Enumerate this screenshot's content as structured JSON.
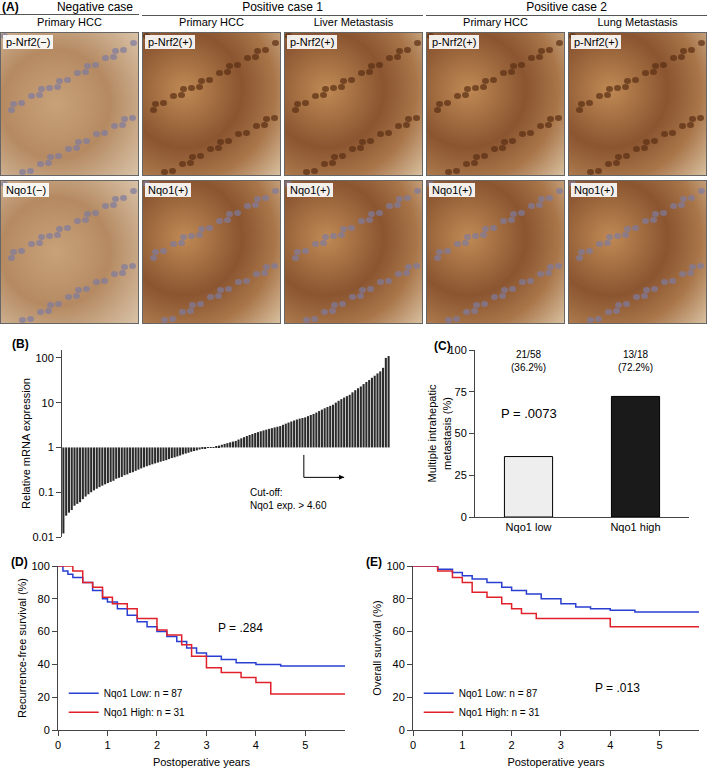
{
  "panel_a": {
    "panel": "(A)",
    "groups": [
      {
        "title": "Negative case",
        "columns": [
          {
            "title": "Primary HCC",
            "stains": [
              "p-Nrf2(−)",
              "Nqo1(−)"
            ]
          }
        ]
      },
      {
        "title": "Positive case 1",
        "columns": [
          {
            "title": "Primary HCC",
            "stains": [
              "p-Nrf2(+)",
              "Nqo1(+)"
            ]
          },
          {
            "title": "Liver Metastasis",
            "stains": [
              "p-Nrf2(+)",
              "Nqo1(+)"
            ]
          }
        ]
      },
      {
        "title": "Positive case 2",
        "columns": [
          {
            "title": "Primary HCC",
            "stains": [
              "p-Nrf2(+)",
              "Nqo1(+)"
            ]
          },
          {
            "title": "Lung Metastasis",
            "stains": [
              "p-Nrf2(+)",
              "Nqo1(+)"
            ]
          }
        ]
      }
    ]
  },
  "chart_data": [
    {
      "panel": "(B)",
      "type": "bar",
      "y_label": "Relative mRNA expression",
      "log": "y",
      "grid": false,
      "tick_labels": "y",
      "baseline": 1,
      "cutoff": 4.6,
      "annotation": "Cut-off:\nNqo1 exp. > 4.60",
      "color": "#2b2b2b",
      "categories": [
        null,
        null,
        null,
        null,
        null,
        null,
        null,
        null,
        null,
        null,
        null,
        null,
        null,
        null,
        null,
        null,
        null,
        null,
        null,
        null,
        null,
        null,
        null,
        null,
        null,
        null,
        null,
        null,
        null,
        null,
        null,
        null,
        null,
        null,
        null,
        null,
        null,
        null,
        null,
        null,
        null,
        null,
        null,
        null,
        null,
        null,
        null,
        null,
        null,
        null,
        null,
        null,
        null,
        null,
        null,
        null,
        null,
        null,
        null,
        null,
        null,
        null,
        null,
        null,
        null,
        null,
        null,
        null,
        null,
        null,
        null,
        null,
        null,
        null,
        null,
        null,
        null,
        null,
        null,
        null,
        null,
        null,
        null,
        null,
        null,
        null,
        null,
        null,
        null,
        null,
        null,
        null,
        null,
        null,
        null,
        null,
        null,
        null,
        null,
        null,
        null,
        null,
        null,
        null,
        null,
        null,
        null,
        null,
        null,
        null,
        null,
        null,
        null,
        null,
        null,
        null,
        null,
        null
      ],
      "values": [
        0.012,
        0.03,
        0.035,
        0.04,
        0.05,
        0.055,
        0.06,
        0.07,
        0.08,
        0.09,
        0.1,
        0.11,
        0.12,
        0.13,
        0.14,
        0.15,
        0.16,
        0.17,
        0.18,
        0.2,
        0.21,
        0.22,
        0.24,
        0.25,
        0.27,
        0.28,
        0.3,
        0.32,
        0.34,
        0.36,
        0.38,
        0.4,
        0.42,
        0.44,
        0.46,
        0.48,
        0.5,
        0.52,
        0.55,
        0.58,
        0.6,
        0.63,
        0.66,
        0.7,
        0.73,
        0.76,
        0.8,
        0.83,
        0.86,
        0.9,
        0.93,
        0.96,
        0.98,
        0.99,
        1.02,
        1.05,
        1.1,
        1.15,
        1.2,
        1.25,
        1.3,
        1.35,
        1.4,
        1.5,
        1.6,
        1.7,
        1.8,
        1.9,
        2.0,
        2.1,
        2.2,
        2.3,
        2.4,
        2.5,
        2.6,
        2.7,
        2.8,
        2.9,
        3.0,
        3.2,
        3.4,
        3.6,
        3.8,
        4.0,
        4.2,
        4.4,
        4.55,
        4.7,
        5.0,
        5.3,
        5.6,
        6.0,
        6.5,
        7.0,
        7.5,
        8.0,
        8.5,
        9.0,
        10,
        11,
        12,
        13,
        14,
        15,
        17,
        19,
        21,
        23,
        26,
        29,
        32,
        36,
        40,
        45,
        50,
        60,
        100,
        110
      ],
      "ylim": [
        0.01,
        150
      ],
      "yticks": [
        0.01,
        0.1,
        1,
        10,
        100
      ]
    },
    {
      "panel": "(C)",
      "type": "bar",
      "y_label": "Multiple intrahepatic\nmetastasis (%)",
      "grid": false,
      "categories": [
        "Nqo1 low",
        "Nqo1 high"
      ],
      "values": [
        36.2,
        72.2
      ],
      "value_labels": [
        "21/58\n(36.2%)",
        "13/18\n(72.2%)"
      ],
      "colors": [
        "#eeeeee",
        "#1a1a1a"
      ],
      "annotation": "P = .0073",
      "ylim": [
        0,
        100
      ],
      "yticks": [
        0,
        25,
        50,
        75,
        100
      ]
    },
    {
      "panel": "(D)",
      "type": "line",
      "line_style": "step",
      "x_label": "Postoperative years",
      "y_label": "Recurrence-free survival (%)",
      "grid": false,
      "legend": "lower left",
      "annotation": "P = .284",
      "xlim": [
        0,
        5.8
      ],
      "xticks": [
        0,
        1,
        2,
        3,
        4,
        5
      ],
      "ylim": [
        0,
        100
      ],
      "yticks": [
        0,
        20,
        40,
        60,
        80,
        100
      ],
      "series": [
        {
          "name": "Nqo1 Low: n = 87",
          "color": "#2a3fd1",
          "x": [
            0,
            0.1,
            0.2,
            0.3,
            0.5,
            0.7,
            0.9,
            1.0,
            1.2,
            1.4,
            1.6,
            1.8,
            2.0,
            2.2,
            2.4,
            2.6,
            2.8,
            3.0,
            3.3,
            3.6,
            4.0,
            4.5,
            5.8
          ],
          "values": [
            100,
            97,
            95,
            93,
            90,
            85,
            80,
            78,
            74,
            70,
            66,
            63,
            60,
            57,
            54,
            50,
            47,
            45,
            43,
            41,
            40,
            39,
            39
          ]
        },
        {
          "name": "Nqo1 High: n = 31",
          "color": "#e0202a",
          "x": [
            0,
            0.3,
            0.5,
            0.7,
            0.9,
            1.1,
            1.4,
            1.6,
            2.0,
            2.2,
            2.5,
            2.7,
            3.0,
            3.3,
            3.7,
            4.0,
            4.3,
            5.8
          ],
          "values": [
            100,
            97,
            90,
            87,
            81,
            77,
            74,
            68,
            61,
            58,
            52,
            45,
            38,
            35,
            32,
            29,
            22,
            22
          ]
        }
      ]
    },
    {
      "panel": "(E)",
      "type": "line",
      "line_style": "step",
      "x_label": "Postoperative years",
      "y_label": "Overall survival (%)",
      "grid": false,
      "legend": "lower left",
      "annotation": "P = .013",
      "xlim": [
        0,
        5.8
      ],
      "xticks": [
        0,
        1,
        2,
        3,
        4,
        5
      ],
      "ylim": [
        0,
        100
      ],
      "yticks": [
        0,
        20,
        40,
        60,
        80,
        100
      ],
      "series": [
        {
          "name": "Nqo1 Low: n = 87",
          "color": "#2a3fd1",
          "x": [
            0,
            0.5,
            0.8,
            1.0,
            1.2,
            1.5,
            1.8,
            2.0,
            2.3,
            2.6,
            3.0,
            3.3,
            3.6,
            4.0,
            4.5,
            5.8
          ],
          "values": [
            100,
            98,
            96,
            94,
            92,
            90,
            87,
            85,
            83,
            80,
            77,
            75,
            74,
            73,
            72,
            72
          ]
        },
        {
          "name": "Nqo1 High: n = 31",
          "color": "#e0202a",
          "x": [
            0,
            0.5,
            0.8,
            1.0,
            1.2,
            1.5,
            1.8,
            2.0,
            2.2,
            2.5,
            3.0,
            3.5,
            4.0,
            5.8
          ],
          "values": [
            100,
            97,
            93,
            90,
            84,
            81,
            77,
            74,
            71,
            68,
            68,
            68,
            63,
            63
          ]
        }
      ]
    }
  ]
}
